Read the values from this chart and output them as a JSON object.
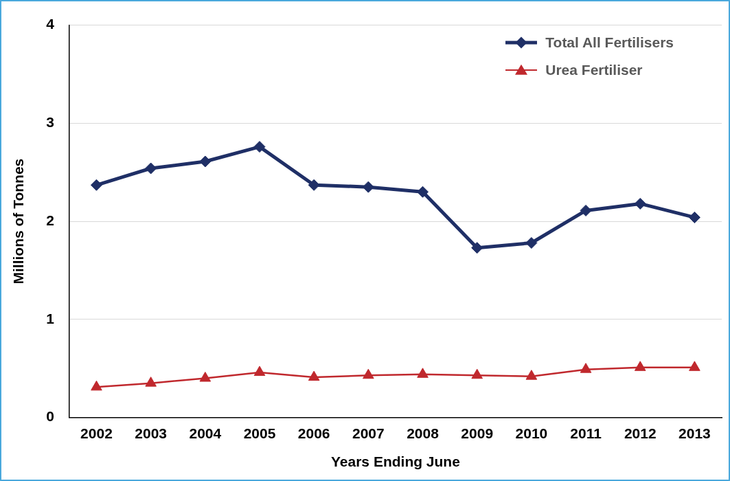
{
  "chart_data": {
    "type": "line",
    "xlabel": "Years Ending June",
    "ylabel": "Millions of Tonnes",
    "categories": [
      "2002",
      "2003",
      "2004",
      "2005",
      "2006",
      "2007",
      "2008",
      "2009",
      "2010",
      "2011",
      "2012",
      "2013"
    ],
    "series": [
      {
        "name": "Total All Fertilisers",
        "color": "#1f2f66",
        "marker": "diamond",
        "values": [
          2.37,
          2.54,
          2.61,
          2.76,
          2.37,
          2.35,
          2.3,
          1.73,
          1.78,
          2.11,
          2.18,
          2.04
        ]
      },
      {
        "name": "Urea Fertiliser",
        "color": "#c0282d",
        "marker": "triangle",
        "values": [
          0.31,
          0.35,
          0.4,
          0.46,
          0.41,
          0.43,
          0.44,
          0.43,
          0.42,
          0.49,
          0.51,
          0.51
        ]
      }
    ],
    "ylim": [
      0,
      4
    ],
    "yticks": [
      0,
      1,
      2,
      3,
      4
    ],
    "grid": "y",
    "legend": "top right"
  }
}
